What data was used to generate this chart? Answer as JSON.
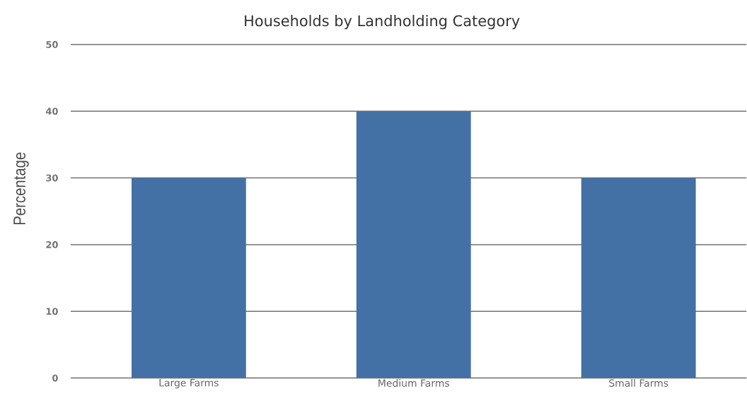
{
  "chart_data": {
    "type": "bar",
    "title": "Households by Landholding Category",
    "ylabel": "Percentage",
    "categories": [
      "Large Farms",
      "Medium Farms",
      "Small Farms"
    ],
    "values": [
      30,
      40,
      30
    ],
    "color": "#4471a5",
    "ylim": [
      0,
      50
    ],
    "yticks": [
      0,
      10,
      20,
      30,
      40,
      50
    ],
    "grid": "y"
  }
}
